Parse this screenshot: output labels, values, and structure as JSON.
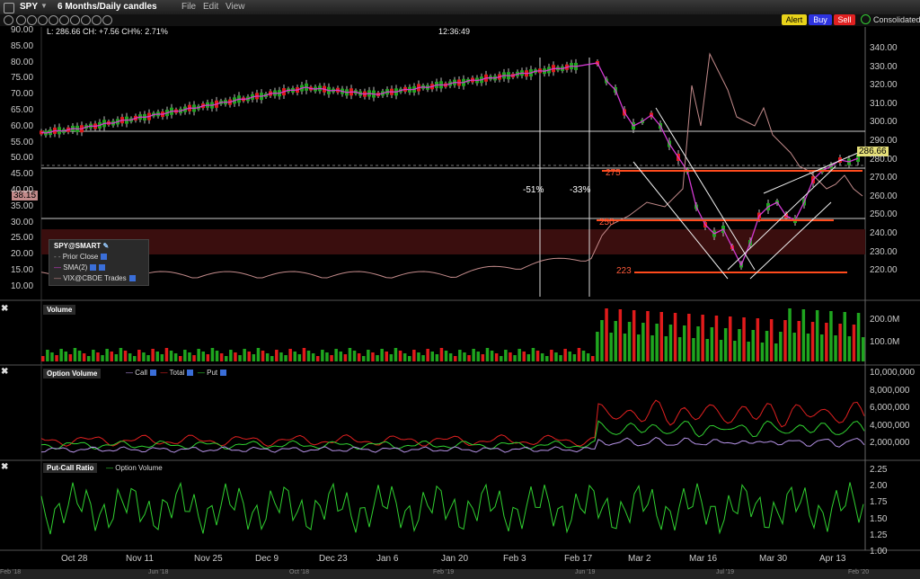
{
  "window": {
    "symbol": "SPY",
    "period": "6 Months/Daily candles",
    "menus": [
      "File",
      "Edit",
      "View"
    ],
    "alert_label": "Alert",
    "buy_label": "Buy",
    "sell_label": "Sell",
    "consolidated_label": "Consolidated"
  },
  "info": {
    "ohlc": "L: 286.66   CH: +7.56 CH%: 2.71%",
    "time": "12:36:49",
    "last_price": "286.66",
    "vix_badge": "38.15"
  },
  "annotations": {
    "pct1": "-51%",
    "pct2": "-33%",
    "level_275": "275",
    "level_250": "250",
    "level_223": "223"
  },
  "legend": {
    "title": "SPY@SMART",
    "items": [
      "Prior Close",
      "SMA(2)",
      "VIX@CBOE Trades"
    ]
  },
  "panels": {
    "volume": "Volume",
    "option_volume": "Option Volume",
    "option_series": [
      "Call",
      "Total",
      "Put"
    ],
    "pcr": "Put-Call Ratio",
    "pcr_series": "Option Volume"
  },
  "axes": {
    "left_price": [
      "90.00",
      "85.00",
      "80.00",
      "75.00",
      "70.00",
      "65.00",
      "60.00",
      "55.00",
      "50.00",
      "45.00",
      "40.00",
      "35.00",
      "30.00",
      "25.00",
      "20.00",
      "15.00",
      "10.00"
    ],
    "right_price": [
      "340.00",
      "330.00",
      "320.00",
      "310.00",
      "300.00",
      "290.00",
      "280.00",
      "270.00",
      "260.00",
      "250.00",
      "240.00",
      "230.00",
      "220.00"
    ],
    "volume": [
      "200.0M",
      "100.0M"
    ],
    "option_volume": [
      "10,000,000",
      "8,000,000",
      "6,000,000",
      "4,000,000",
      "2,000,000"
    ],
    "pcr": [
      "2.25",
      "2.00",
      "1.75",
      "1.50",
      "1.25",
      "1.00"
    ],
    "x_dates": [
      "Oct 28",
      "Nov 11",
      "Nov 25",
      "Dec 9",
      "Dec 23",
      "Jan 6",
      "Jan 20",
      "Feb 3",
      "Feb 17",
      "Mar 2",
      "Mar 16",
      "Mar 30",
      "Apr 13"
    ],
    "x_overview": [
      "Feb '18",
      "Jun '18",
      "Oct '18",
      "Feb '19",
      "Jun '19",
      "Jul '19",
      "Feb '20"
    ]
  },
  "colors": {
    "up": "#1fa51f",
    "down": "#e01b1b",
    "sma": "#d23ad2",
    "vix": "#c28a8a",
    "level": "#ff4a1c",
    "call": "#b592e6",
    "total": "#e02020",
    "put": "#30d030"
  }
}
